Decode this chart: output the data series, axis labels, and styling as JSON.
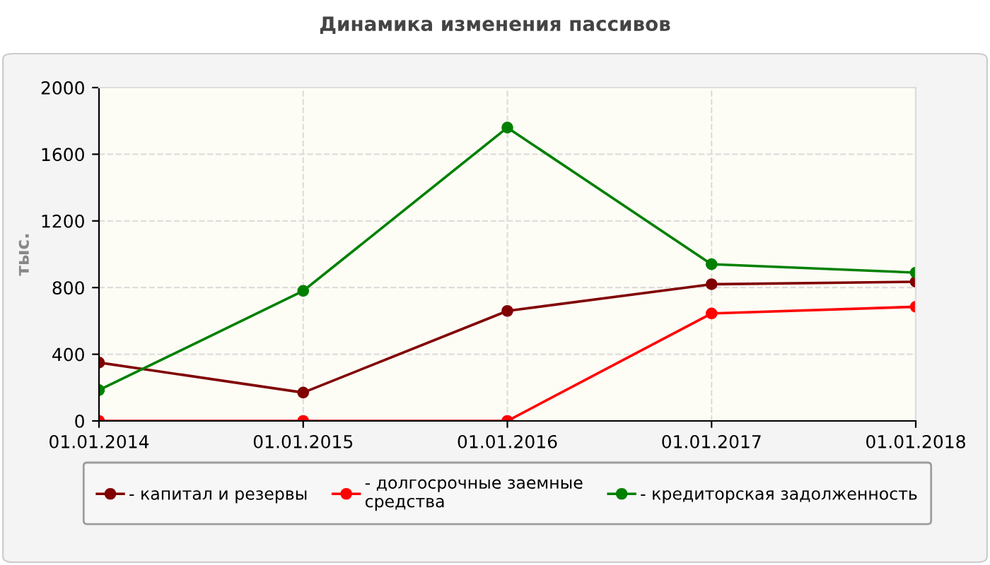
{
  "chart_data": {
    "type": "line",
    "title": "Динамика изменения пассивов",
    "ylabel": "тыс.",
    "categories": [
      "01.01.2014",
      "01.01.2015",
      "01.01.2016",
      "01.01.2017",
      "01.01.2018"
    ],
    "series": [
      {
        "name": "- капитал и резервы",
        "color": "#800000",
        "values": [
          350,
          170,
          660,
          820,
          835
        ]
      },
      {
        "name": "- долгосрочные заемные\nсредства",
        "color": "#ff0000",
        "values": [
          0,
          0,
          0,
          645,
          685
        ]
      },
      {
        "name": "- кредиторская задолженность",
        "color": "#008000",
        "values": [
          185,
          780,
          1760,
          940,
          890
        ]
      }
    ],
    "ylim": [
      0,
      2000
    ],
    "yticks": [
      0,
      400,
      800,
      1200,
      1600,
      2000
    ],
    "grid": true,
    "legend": "bottom",
    "marker": "circle",
    "line_style": "solid"
  }
}
